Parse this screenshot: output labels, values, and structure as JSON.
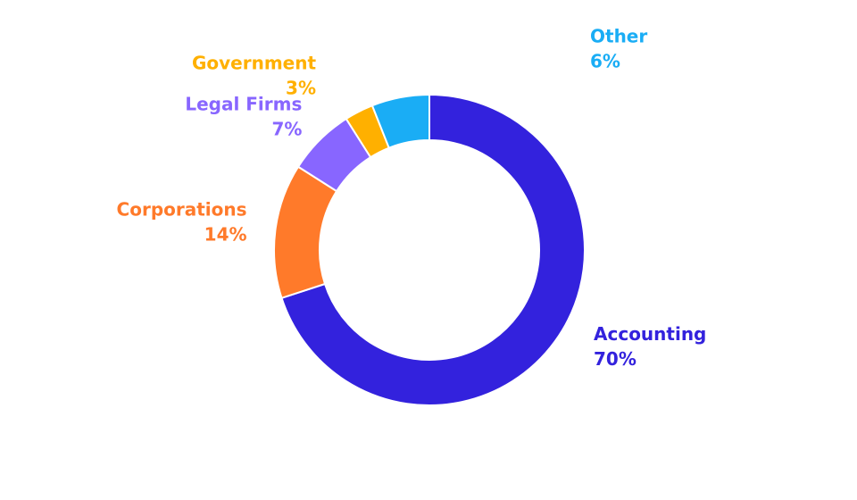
{
  "chart_data": {
    "type": "pie",
    "donut": true,
    "title": "",
    "start_angle_deg": 0,
    "direction": "clockwise",
    "slices": [
      {
        "label": "Accounting",
        "value": 70,
        "value_label": "70%",
        "color": "#3322DD"
      },
      {
        "label": "Corporations",
        "value": 14,
        "value_label": "14%",
        "color": "#FF7A2A"
      },
      {
        "label": "Legal Firms",
        "value": 7,
        "value_label": "7%",
        "color": "#8866FF"
      },
      {
        "label": "Government",
        "value": 3,
        "value_label": "3%",
        "color": "#FFB000"
      },
      {
        "label": "Other",
        "value": 6,
        "value_label": "6%",
        "color": "#1AADF5"
      }
    ],
    "legend": "none"
  }
}
